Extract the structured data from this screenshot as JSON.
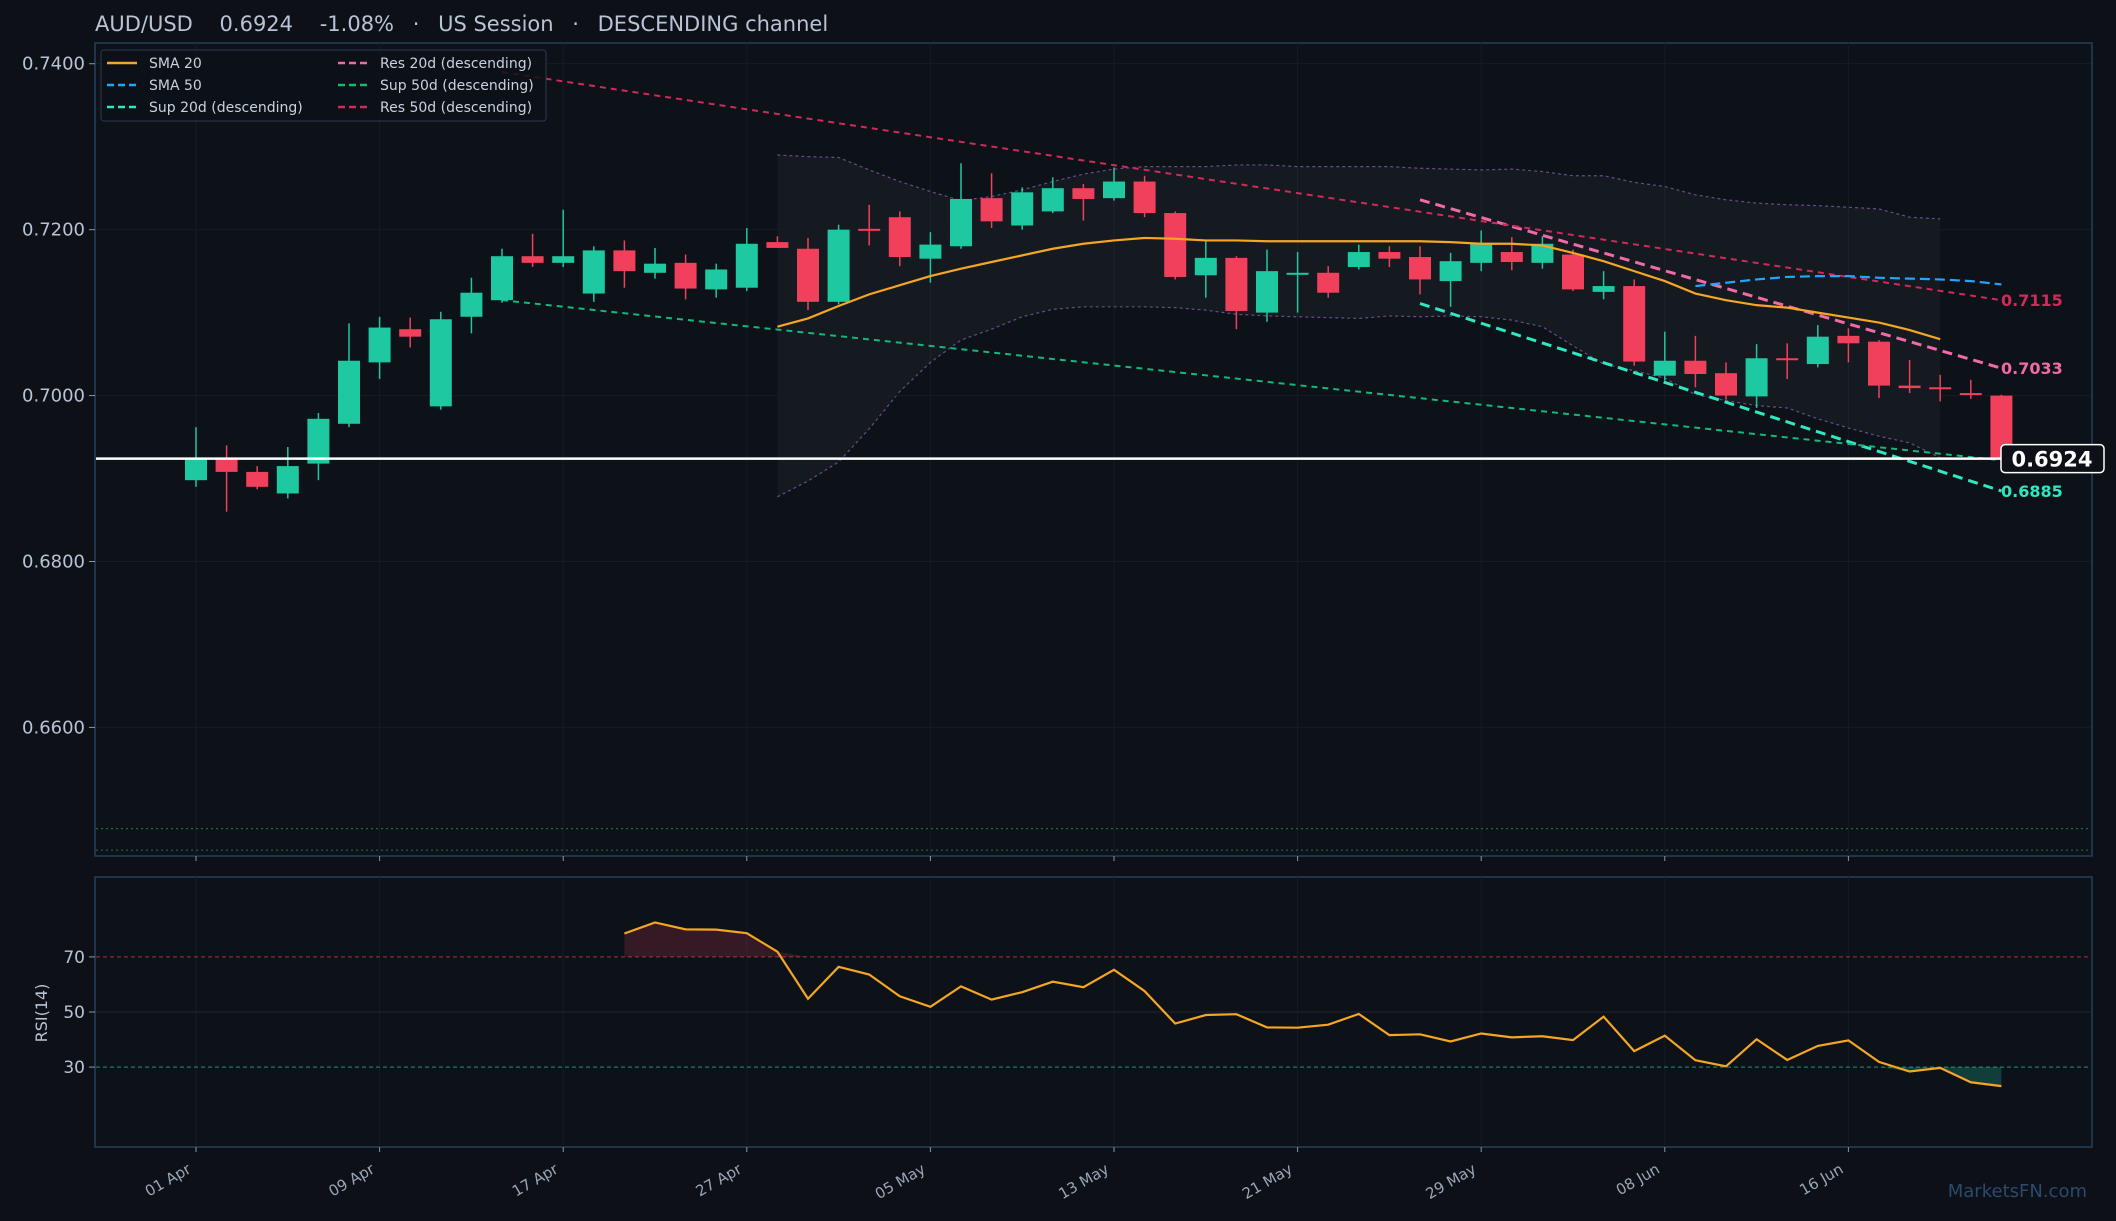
{
  "header": {
    "symbol": "AUD/USD",
    "price": "0.6924",
    "change": "-1.08%",
    "session": "US Session",
    "channel": "DESCENDING channel",
    "sep": "·"
  },
  "watermark": "MarketsFN.com",
  "colors": {
    "background": "#0d1017",
    "panel_border": "#25405e",
    "bull": "#1ec8a0",
    "bear": "#f0405c",
    "sma20": "#f5a623",
    "sma50": "#1ea7ff",
    "sup20": "#2ee8c0",
    "res20": "#f06aa8",
    "sup50": "#12b87c",
    "res50": "#d02a5a",
    "last_price_line": "#ffffff",
    "text": "#b8c4d6"
  },
  "chart_data": {
    "type": "candlestick",
    "title": "AUD/USD",
    "x_tick_labels": [
      "01 Apr",
      "09 Apr",
      "17 Apr",
      "27 Apr",
      "05 May",
      "13 May",
      "21 May",
      "29 May",
      "08 Jun",
      "16 Jun"
    ],
    "x_tick_index": [
      0,
      6,
      12,
      18,
      24,
      30,
      36,
      42,
      48,
      54
    ],
    "y_ticks": [
      "0.6600",
      "0.6800",
      "0.7000",
      "0.7200",
      "0.7400"
    ],
    "ylim": [
      0.6445,
      0.7425
    ],
    "candles": [
      {
        "d": "01 Apr",
        "o": 0.6898,
        "h": 0.6962,
        "l": 0.689,
        "c": 0.6923
      },
      {
        "d": "02 Apr",
        "o": 0.6923,
        "h": 0.694,
        "l": 0.686,
        "c": 0.6908
      },
      {
        "d": "03 Apr",
        "o": 0.6908,
        "h": 0.6915,
        "l": 0.6887,
        "c": 0.689
      },
      {
        "d": "04 Apr",
        "o": 0.6882,
        "h": 0.6938,
        "l": 0.6876,
        "c": 0.6915
      },
      {
        "d": "07 Apr",
        "o": 0.6918,
        "h": 0.6979,
        "l": 0.6898,
        "c": 0.6972
      },
      {
        "d": "08 Apr",
        "o": 0.6966,
        "h": 0.7087,
        "l": 0.6962,
        "c": 0.7042
      },
      {
        "d": "09 Apr",
        "o": 0.704,
        "h": 0.7095,
        "l": 0.702,
        "c": 0.7082
      },
      {
        "d": "10 Apr",
        "o": 0.708,
        "h": 0.7094,
        "l": 0.7058,
        "c": 0.7071
      },
      {
        "d": "11 Apr",
        "o": 0.6987,
        "h": 0.7101,
        "l": 0.6983,
        "c": 0.7092
      },
      {
        "d": "14 Apr",
        "o": 0.7095,
        "h": 0.7142,
        "l": 0.7075,
        "c": 0.7124
      },
      {
        "d": "15 Apr",
        "o": 0.7115,
        "h": 0.7177,
        "l": 0.7112,
        "c": 0.7168
      },
      {
        "d": "16 Apr",
        "o": 0.7168,
        "h": 0.7195,
        "l": 0.7155,
        "c": 0.716
      },
      {
        "d": "17 Apr",
        "o": 0.716,
        "h": 0.7224,
        "l": 0.7155,
        "c": 0.7168
      },
      {
        "d": "18 Apr",
        "o": 0.7123,
        "h": 0.718,
        "l": 0.7113,
        "c": 0.7175
      },
      {
        "d": "21 Apr",
        "o": 0.7175,
        "h": 0.7187,
        "l": 0.713,
        "c": 0.715
      },
      {
        "d": "22 Apr",
        "o": 0.7148,
        "h": 0.7178,
        "l": 0.7141,
        "c": 0.7159
      },
      {
        "d": "23 Apr",
        "o": 0.716,
        "h": 0.717,
        "l": 0.7116,
        "c": 0.7129
      },
      {
        "d": "24 Apr",
        "o": 0.7128,
        "h": 0.7159,
        "l": 0.7118,
        "c": 0.7152
      },
      {
        "d": "25 Apr",
        "o": 0.713,
        "h": 0.7202,
        "l": 0.7126,
        "c": 0.7183
      },
      {
        "d": "28 Apr",
        "o": 0.7185,
        "h": 0.7192,
        "l": 0.7178,
        "c": 0.7178
      },
      {
        "d": "29 Apr",
        "o": 0.7177,
        "h": 0.719,
        "l": 0.7103,
        "c": 0.7113
      },
      {
        "d": "30 Apr",
        "o": 0.7113,
        "h": 0.7206,
        "l": 0.711,
        "c": 0.72
      },
      {
        "d": "01 May",
        "o": 0.7201,
        "h": 0.723,
        "l": 0.7181,
        "c": 0.7199
      },
      {
        "d": "02 May",
        "o": 0.7215,
        "h": 0.7222,
        "l": 0.7156,
        "c": 0.7167
      },
      {
        "d": "05 May",
        "o": 0.7165,
        "h": 0.7197,
        "l": 0.7136,
        "c": 0.7182
      },
      {
        "d": "06 May",
        "o": 0.718,
        "h": 0.728,
        "l": 0.7177,
        "c": 0.7237
      },
      {
        "d": "07 May",
        "o": 0.7238,
        "h": 0.7268,
        "l": 0.7202,
        "c": 0.721
      },
      {
        "d": "08 May",
        "o": 0.7205,
        "h": 0.7251,
        "l": 0.72,
        "c": 0.7245
      },
      {
        "d": "09 May",
        "o": 0.7222,
        "h": 0.7263,
        "l": 0.722,
        "c": 0.725
      },
      {
        "d": "12 May",
        "o": 0.725,
        "h": 0.7255,
        "l": 0.7211,
        "c": 0.7237
      },
      {
        "d": "13 May",
        "o": 0.7238,
        "h": 0.7275,
        "l": 0.7235,
        "c": 0.7258
      },
      {
        "d": "14 May",
        "o": 0.7258,
        "h": 0.7265,
        "l": 0.7215,
        "c": 0.722
      },
      {
        "d": "15 May",
        "o": 0.722,
        "h": 0.7222,
        "l": 0.714,
        "c": 0.7143
      },
      {
        "d": "16 May",
        "o": 0.7145,
        "h": 0.7186,
        "l": 0.7118,
        "c": 0.7166
      },
      {
        "d": "19 May",
        "o": 0.7166,
        "h": 0.7168,
        "l": 0.708,
        "c": 0.7102
      },
      {
        "d": "20 May",
        "o": 0.71,
        "h": 0.7176,
        "l": 0.7089,
        "c": 0.715
      },
      {
        "d": "21 May",
        "o": 0.7147,
        "h": 0.7173,
        "l": 0.71,
        "c": 0.7148
      },
      {
        "d": "22 May",
        "o": 0.7148,
        "h": 0.7156,
        "l": 0.7118,
        "c": 0.7124
      },
      {
        "d": "23 May",
        "o": 0.7155,
        "h": 0.7182,
        "l": 0.7152,
        "c": 0.7173
      },
      {
        "d": "26 May",
        "o": 0.7173,
        "h": 0.718,
        "l": 0.7155,
        "c": 0.7165
      },
      {
        "d": "27 May",
        "o": 0.7167,
        "h": 0.718,
        "l": 0.7122,
        "c": 0.714
      },
      {
        "d": "28 May",
        "o": 0.7138,
        "h": 0.7172,
        "l": 0.7107,
        "c": 0.7162
      },
      {
        "d": "29 May",
        "o": 0.716,
        "h": 0.7199,
        "l": 0.715,
        "c": 0.7184
      },
      {
        "d": "30 May",
        "o": 0.7173,
        "h": 0.7191,
        "l": 0.7151,
        "c": 0.7161
      },
      {
        "d": "02 Jun",
        "o": 0.716,
        "h": 0.7192,
        "l": 0.7153,
        "c": 0.7183
      },
      {
        "d": "03 Jun",
        "o": 0.717,
        "h": 0.7176,
        "l": 0.7126,
        "c": 0.7128
      },
      {
        "d": "04 Jun",
        "o": 0.7125,
        "h": 0.715,
        "l": 0.7116,
        "c": 0.7132
      },
      {
        "d": "05 Jun",
        "o": 0.7132,
        "h": 0.714,
        "l": 0.7036,
        "c": 0.7041
      },
      {
        "d": "06 Jun",
        "o": 0.7024,
        "h": 0.7077,
        "l": 0.7018,
        "c": 0.7042
      },
      {
        "d": "09 Jun",
        "o": 0.7042,
        "h": 0.7072,
        "l": 0.701,
        "c": 0.7026
      },
      {
        "d": "10 Jun",
        "o": 0.7027,
        "h": 0.704,
        "l": 0.6995,
        "c": 0.7
      },
      {
        "d": "11 Jun",
        "o": 0.6999,
        "h": 0.7062,
        "l": 0.6985,
        "c": 0.7045
      },
      {
        "d": "12 Jun",
        "o": 0.7045,
        "h": 0.7063,
        "l": 0.702,
        "c": 0.7043
      },
      {
        "d": "13 Jun",
        "o": 0.7038,
        "h": 0.7085,
        "l": 0.7034,
        "c": 0.7071
      },
      {
        "d": "16 Jun",
        "o": 0.7072,
        "h": 0.7081,
        "l": 0.704,
        "c": 0.7063
      },
      {
        "d": "17 Jun",
        "o": 0.7065,
        "h": 0.7067,
        "l": 0.6997,
        "c": 0.7012
      },
      {
        "d": "18 Jun",
        "o": 0.7012,
        "h": 0.7043,
        "l": 0.7003,
        "c": 0.7009
      },
      {
        "d": "19 Jun",
        "o": 0.701,
        "h": 0.7025,
        "l": 0.6993,
        "c": 0.7008
      },
      {
        "d": "20 Jun",
        "o": 0.7003,
        "h": 0.7019,
        "l": 0.6996,
        "c": 0.7001
      },
      {
        "d": "23 Jun",
        "o": 0.7,
        "h": 0.7001,
        "l": 0.6924,
        "c": 0.6924
      }
    ],
    "sma20": {
      "start": 19,
      "values": [
        0.7083,
        0.7093,
        0.7108,
        0.7122,
        0.7133,
        0.7144,
        0.7153,
        0.7161,
        0.7169,
        0.7177,
        0.7183,
        0.7187,
        0.719,
        0.7189,
        0.7187,
        0.7187,
        0.7186,
        0.7186,
        0.7186,
        0.7186,
        0.7186,
        0.7186,
        0.7185,
        0.7183,
        0.7183,
        0.7181,
        0.7172,
        0.7162,
        0.715,
        0.7138,
        0.7123,
        0.7115,
        0.7109,
        0.7106,
        0.71,
        0.7094,
        0.7088,
        0.7079,
        0.7068
      ]
    },
    "sma50": {
      "start": 49,
      "values": [
        0.7132,
        0.7136,
        0.714,
        0.7143,
        0.7144,
        0.7144,
        0.7142,
        0.7141,
        0.714,
        0.7138,
        0.7134
      ]
    },
    "bollinger_upper": {
      "start": 19,
      "values": [
        0.729,
        0.7288,
        0.7287,
        0.7272,
        0.7258,
        0.7246,
        0.7235,
        0.724,
        0.7248,
        0.7258,
        0.7267,
        0.7273,
        0.7276,
        0.7276,
        0.7276,
        0.7278,
        0.7278,
        0.7276,
        0.7276,
        0.7276,
        0.7276,
        0.7274,
        0.7273,
        0.7272,
        0.7273,
        0.727,
        0.7265,
        0.7265,
        0.7257,
        0.7252,
        0.7242,
        0.7236,
        0.7232,
        0.723,
        0.7229,
        0.7227,
        0.7225,
        0.7215,
        0.7213
      ]
    },
    "bollinger_lower": {
      "start": 19,
      "values": [
        0.6878,
        0.6897,
        0.692,
        0.696,
        0.7005,
        0.704,
        0.7067,
        0.708,
        0.7095,
        0.7104,
        0.7107,
        0.7107,
        0.7107,
        0.7106,
        0.7103,
        0.7098,
        0.7096,
        0.7095,
        0.7094,
        0.7093,
        0.7096,
        0.7095,
        0.7096,
        0.7095,
        0.7091,
        0.7083,
        0.706,
        0.7038,
        0.703,
        0.7021,
        0.7001,
        0.6994,
        0.6988,
        0.6985,
        0.6972,
        0.6961,
        0.6951,
        0.6943,
        0.6925
      ]
    },
    "trendlines": [
      {
        "name": "Res 20d (descending)",
        "from": [
          40,
          0.7236
        ],
        "to": [
          59,
          0.7033
        ],
        "end_label": "0.7033"
      },
      {
        "name": "Sup 20d (descending)",
        "from": [
          40,
          0.7111
        ],
        "to": [
          59,
          0.6885
        ],
        "end_label": "0.6885"
      },
      {
        "name": "Sup 50d (descending)",
        "from": [
          10,
          0.7115
        ],
        "to": [
          59,
          0.6922
        ]
      },
      {
        "name": "Res 50d (descending)",
        "from": [
          10,
          0.739
        ],
        "to": [
          59,
          0.7115
        ],
        "end_label": "0.7115"
      }
    ],
    "last_price": 0.6924,
    "last_price_label": "0.6924",
    "reference_levels": [
      0.6478,
      0.6452
    ],
    "legend": {
      "position": "top-left",
      "items": [
        {
          "label": "SMA 20",
          "key": "sma20",
          "dash": "solid"
        },
        {
          "label": "Res 20d (descending)",
          "key": "res20",
          "dash": "dash"
        },
        {
          "label": "SMA 50",
          "key": "sma50",
          "dash": "dash"
        },
        {
          "label": "Sup 50d (descending)",
          "key": "sup50",
          "dash": "dash"
        },
        {
          "label": "Sup 20d (descending)",
          "key": "sup20",
          "dash": "dash"
        },
        {
          "label": "Res 50d (descending)",
          "key": "res50",
          "dash": "dash"
        }
      ]
    },
    "rsi": {
      "ylabel": "RSI(14)",
      "y_ticks": [
        "30",
        "50",
        "70"
      ],
      "overbought": 70,
      "oversold": 30,
      "ylim": [
        1,
        99
      ],
      "start": 14,
      "values": [
        78.5,
        82.5,
        80,
        79.9,
        78.6,
        71.9,
        54.8,
        66.4,
        63.6,
        55.7,
        51.9,
        59.3,
        54.5,
        57.2,
        61,
        59,
        65.3,
        57.6,
        45.8,
        48.9,
        49.2,
        44.4,
        44.3,
        45.4,
        49.3,
        41.6,
        41.9,
        39.3,
        42.2,
        40.8,
        41.2,
        39.8,
        48.3,
        35.8,
        41.4,
        32.5,
        30.3,
        40.1,
        32.6,
        37.7,
        39.7,
        31.9,
        28.4,
        29.7,
        24.5,
        23.1
      ]
    }
  }
}
